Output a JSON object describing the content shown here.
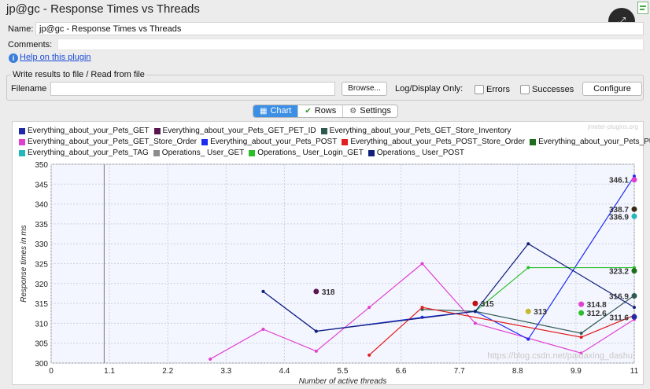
{
  "window": {
    "title": "jp@gc - Response Times vs Threads"
  },
  "form": {
    "name_label": "Name:",
    "name_value": "jp@gc - Response Times vs Threads",
    "comments_label": "Comments:",
    "help_link": "Help on this plugin",
    "file_section_legend": "Write results to file / Read from file",
    "filename_label": "Filename",
    "filename_value": "",
    "browse_label": "Browse...",
    "log_display_label": "Log/Display Only:",
    "errors_label": "Errors",
    "successes_label": "Successes",
    "configure_label": "Configure"
  },
  "tabs": [
    {
      "label": "Chart",
      "icon": "chart-icon",
      "active": true
    },
    {
      "label": "Rows",
      "icon": "checkmark-icon",
      "active": false
    },
    {
      "label": "Settings",
      "icon": "gear-icon",
      "active": false
    }
  ],
  "chart_watermark": "jmeter-plugins.org",
  "image_watermark": "https://blog.csdn.net/paidaxing_dashu",
  "chart_data": {
    "type": "line",
    "xlabel": "Number of active threads",
    "ylabel": "Response times in ms",
    "xlim": [
      0,
      11
    ],
    "ylim": [
      300,
      350
    ],
    "x_ticks": [
      "0",
      "1.1",
      "2.2",
      "3.3",
      "4.4",
      "5.5",
      "6.6",
      "7.7",
      "8.8",
      "9.9",
      "11"
    ],
    "y_ticks": [
      "300",
      "305",
      "310",
      "315",
      "320",
      "325",
      "330",
      "335",
      "340",
      "345",
      "350"
    ],
    "grid": true,
    "legend_position": "top",
    "series": [
      {
        "name": "Everything_about_your_Pets_GET",
        "color": "#1f2aa8",
        "points": [
          [
            11,
            311.6
          ]
        ]
      },
      {
        "name": "Everything_about_your_Pets_GET_PET_ID",
        "color": "#5a1650",
        "points": [
          [
            5,
            318
          ]
        ]
      },
      {
        "name": "Everything_about_your_Pets_GET_Store_Inventory",
        "color": "#2f5a50",
        "points": [
          [
            7,
            313.5
          ],
          [
            8,
            313
          ],
          [
            10,
            307.5
          ],
          [
            11,
            317
          ]
        ]
      },
      {
        "name": "Everything_about_your_Pets_GET_Store_Order",
        "color": "#e040d0",
        "points": [
          [
            3,
            301
          ],
          [
            4,
            308.5
          ],
          [
            5,
            303
          ],
          [
            6,
            314
          ],
          [
            7,
            325
          ],
          [
            8,
            310
          ],
          [
            10,
            302.5
          ],
          [
            11,
            311
          ]
        ]
      },
      {
        "name": "Everything_about_your_Pets_POST",
        "color": "#1b2cf0",
        "points": [
          [
            4,
            318
          ],
          [
            5,
            308
          ],
          [
            7,
            311.5
          ],
          [
            8,
            313
          ],
          [
            9,
            306
          ],
          [
            11,
            347
          ]
        ]
      },
      {
        "name": "Everything_about_your_Pets_POST_Store_Order",
        "color": "#e02020",
        "points": [
          [
            6,
            302
          ],
          [
            7,
            314
          ],
          [
            10,
            306.5
          ],
          [
            11,
            312
          ]
        ]
      },
      {
        "name": "Everything_about_your_Pets_PUT",
        "color": "#1f6e1f",
        "points": [
          [
            11,
            323.2
          ]
        ]
      },
      {
        "name": "Everything_about_your_Pets_TAG",
        "color": "#24b8b8",
        "points": [
          [
            11,
            336.9
          ]
        ]
      },
      {
        "name": "Operations_ User_GET",
        "color": "#8c8c8c",
        "points": []
      },
      {
        "name": "Operations_ User_Login_GET",
        "color": "#2bbf2b",
        "points": [
          [
            8,
            313
          ],
          [
            9,
            324
          ],
          [
            11,
            324
          ]
        ]
      },
      {
        "name": "Operations_ User_POST",
        "color": "#11207a",
        "points": [
          [
            4,
            318
          ],
          [
            5,
            308
          ],
          [
            8,
            313
          ],
          [
            9,
            330
          ],
          [
            11,
            314
          ]
        ]
      }
    ],
    "annotations": [
      {
        "text": "318",
        "x": 5,
        "y": 318,
        "color": "#5a1650"
      },
      {
        "text": "315",
        "x": 8,
        "y": 315,
        "color": "#c01010"
      },
      {
        "text": "313",
        "x": 9,
        "y": 313,
        "color": "#c8b82a"
      },
      {
        "text": "314.8",
        "x": 10,
        "y": 314.8,
        "color": "#e040d0"
      },
      {
        "text": "312.6",
        "x": 10,
        "y": 312.6,
        "color": "#2bbf2b"
      },
      {
        "text": "346.1",
        "x": 11,
        "y": 346.1,
        "color": "#e040d0"
      },
      {
        "text": "338.7",
        "x": 11,
        "y": 338.7,
        "color": "#3a2a10"
      },
      {
        "text": "336.9",
        "x": 11,
        "y": 336.9,
        "color": "#24b8b8"
      },
      {
        "text": "323.2",
        "x": 11,
        "y": 323.2,
        "color": "#1f6e1f"
      },
      {
        "text": "316.9",
        "x": 11,
        "y": 316.9,
        "color": "#2f5a50"
      },
      {
        "text": "311.6",
        "x": 11,
        "y": 311.6,
        "color": "#1f2aa8"
      }
    ]
  }
}
